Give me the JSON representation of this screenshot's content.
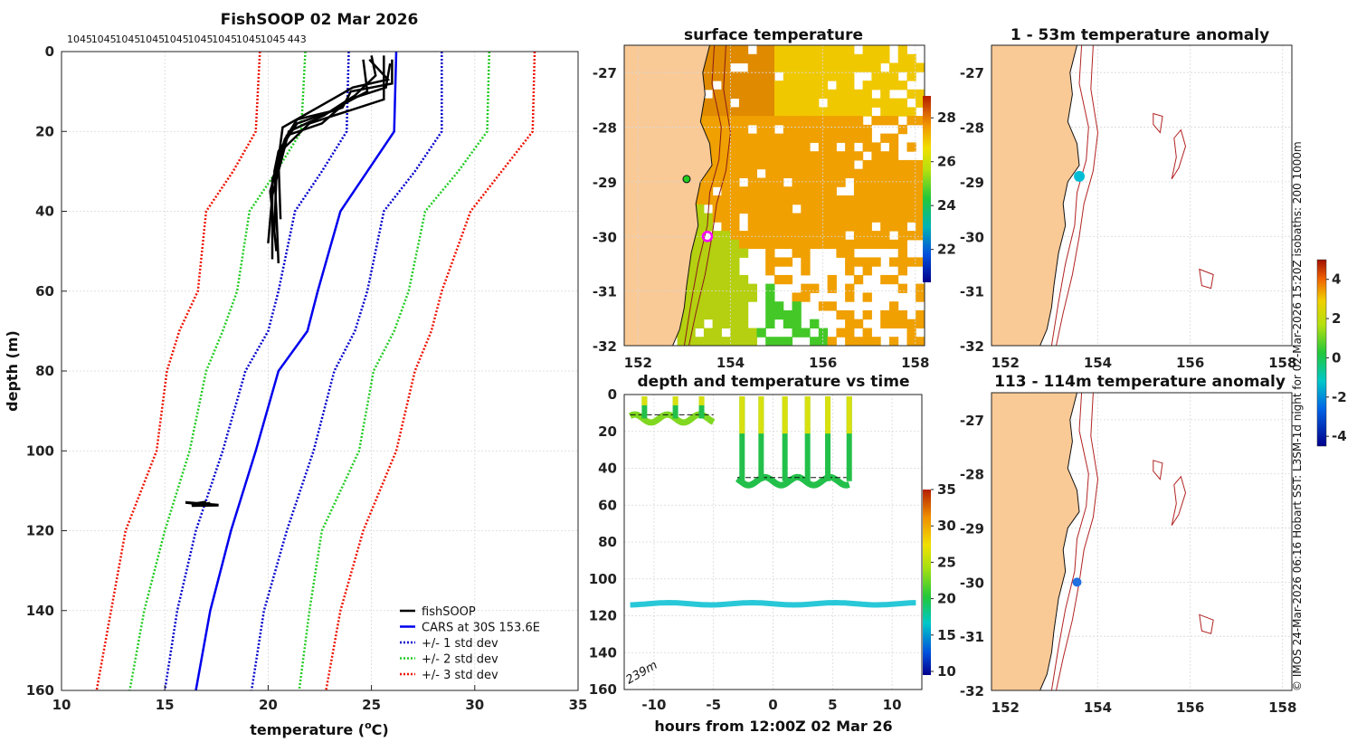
{
  "title": "FishSOOP 02 Mar 2026",
  "profile_counts": [
    "1045",
    "1045",
    "1045",
    "1045",
    "1045",
    "1045",
    "1045",
    "1045",
    "1045",
    "443"
  ],
  "credit": "© IMOS 24-Mar-2026 06:16 Hobart SST: L3SM-1d night for 02-Mar-2026 15:20Z isobaths: 200  1000m",
  "colors": {
    "fishsoop": "#000000",
    "cars": "#0000ee",
    "std1": "#0000cc",
    "std2": "#22cc22",
    "std3": "#ee1100",
    "land": "#f9c996",
    "coast": "#111111",
    "isobath": "#b22222"
  },
  "chart_data": [
    {
      "type": "line",
      "name": "profile",
      "title": "FishSOOP 02 Mar 2026",
      "xlabel": "temperature (oC)",
      "xlabel_main": "temperature (",
      "xlabel_sup": "o",
      "xlabel_end": "C)",
      "ylabel": "depth (m)",
      "xlim": [
        10,
        35
      ],
      "ylim": [
        0,
        160
      ],
      "xticks": [
        "10",
        "15",
        "20",
        "25",
        "30",
        "35"
      ],
      "yticks": [
        "0",
        "20",
        "40",
        "60",
        "80",
        "100",
        "120",
        "140",
        "160"
      ],
      "legend": [
        "fishSOOP",
        "CARS at 30S 153.6E",
        "+/- 1 std dev",
        "+/- 2 std dev",
        "+/- 3 std dev"
      ],
      "legend_position": "bottom-right",
      "cars_depth": [
        0,
        20,
        30,
        40,
        60,
        70,
        80,
        100,
        120,
        140,
        160
      ],
      "cars_mean": [
        26.2,
        26.1,
        24.8,
        23.5,
        22.4,
        21.9,
        20.5,
        19.4,
        18.2,
        17.2,
        16.5
      ],
      "std1_low": [
        23.9,
        23.8,
        22.6,
        21.3,
        20.5,
        20.0,
        18.9,
        17.8,
        16.5,
        15.6,
        15.0
      ],
      "std1_high": [
        28.4,
        28.4,
        27.1,
        25.6,
        24.8,
        24.2,
        23.2,
        22.2,
        20.9,
        19.8,
        19.2
      ],
      "std2_low": [
        21.8,
        21.6,
        20.4,
        19.1,
        18.5,
        17.8,
        17.0,
        16.2,
        15.0,
        14.0,
        13.3
      ],
      "std2_high": [
        30.7,
        30.6,
        29.2,
        27.6,
        26.8,
        26.1,
        25.1,
        24.4,
        22.6,
        22.0,
        21.5
      ],
      "std3_low": [
        19.6,
        19.4,
        18.3,
        17.0,
        16.6,
        15.7,
        15.1,
        14.6,
        13.1,
        12.4,
        11.7
      ],
      "std3_high": [
        32.9,
        32.8,
        31.3,
        29.8,
        28.4,
        27.9,
        27.1,
        26.2,
        24.6,
        23.5,
        22.8
      ],
      "fishsoop_profiles": [
        [
          [
            26.0,
            2
          ],
          [
            26.0,
            8
          ],
          [
            24.0,
            10
          ],
          [
            23.6,
            14
          ],
          [
            21.4,
            18
          ],
          [
            20.5,
            25
          ],
          [
            20.3,
            30
          ],
          [
            20.4,
            40
          ],
          [
            20.5,
            53
          ]
        ],
        [
          [
            25.9,
            3
          ],
          [
            25.7,
            9
          ],
          [
            23.9,
            12
          ],
          [
            22.7,
            16
          ],
          [
            21.0,
            20
          ],
          [
            20.6,
            28
          ],
          [
            20.2,
            36
          ],
          [
            20.0,
            48
          ]
        ],
        [
          [
            25.0,
            1
          ],
          [
            25.2,
            6
          ],
          [
            24.2,
            11
          ],
          [
            23.0,
            15
          ],
          [
            21.4,
            17
          ],
          [
            20.8,
            22
          ],
          [
            20.1,
            35
          ],
          [
            20.4,
            50
          ]
        ],
        [
          [
            24.6,
            2
          ],
          [
            24.8,
            10
          ],
          [
            23.7,
            13
          ],
          [
            22.6,
            18
          ],
          [
            20.9,
            21
          ],
          [
            20.4,
            31
          ],
          [
            20.3,
            45
          ]
        ],
        [
          [
            25.6,
            1
          ],
          [
            25.6,
            12
          ],
          [
            23.2,
            16
          ],
          [
            22.0,
            18
          ],
          [
            20.8,
            24
          ],
          [
            20.2,
            32
          ],
          [
            20.2,
            52
          ]
        ],
        [
          [
            24.9,
            2
          ],
          [
            25.8,
            7
          ],
          [
            24.1,
            9
          ],
          [
            22.4,
            14
          ],
          [
            20.7,
            19
          ],
          [
            20.5,
            27
          ],
          [
            20.6,
            42
          ]
        ]
      ],
      "deep_segment": [
        [
          17.0,
          112.8
        ],
        [
          16.5,
          113.2
        ],
        [
          16.0,
          112.9
        ],
        [
          17.6,
          113.6
        ],
        [
          16.3,
          113.7
        ],
        [
          17.2,
          113.1
        ]
      ]
    },
    {
      "type": "heatmap",
      "name": "surface-temperature-map",
      "title": "surface temperature",
      "xticks": [
        "152",
        "154",
        "156",
        "158"
      ],
      "yticks": [
        "-27",
        "-28",
        "-29",
        "-30",
        "-31",
        "-32"
      ],
      "xlim": [
        151.7,
        158.2
      ],
      "ylim": [
        -32,
        -26.5
      ],
      "colorbar_ticks": [
        "22",
        "24",
        "26",
        "28"
      ],
      "colorbar_range": [
        20.5,
        29
      ],
      "markers": [
        {
          "lon": 153.05,
          "lat": -28.95,
          "kind": "green-dot"
        },
        {
          "lon": 153.5,
          "lat": -30.0,
          "kind": "magenta-ring"
        }
      ]
    },
    {
      "type": "scatter",
      "name": "depth-temperature-time",
      "title": "depth and temperature vs time",
      "xlabel": "hours from 12:00Z 02 Mar 26",
      "xlim": [
        -12.5,
        12.5
      ],
      "ylim": [
        0,
        160
      ],
      "xticks": [
        "-10",
        "-5",
        "0",
        "5",
        "10"
      ],
      "yticks": [
        "0",
        "20",
        "40",
        "60",
        "80",
        "100",
        "120",
        "140",
        "160"
      ],
      "colorbar_ticks": [
        "10",
        "15",
        "20",
        "25",
        "30",
        "35"
      ],
      "colorbar_range": [
        9.5,
        35
      ],
      "annotation": "239m",
      "bottom_depth_series": {
        "hours_start": -12,
        "hours_end": 12,
        "depth": 113.5,
        "temperature": 17.5
      },
      "shallow_series": [
        {
          "hours_start": -12,
          "hours_end": -5,
          "depth": 13,
          "temperature": 22.5
        },
        {
          "hours_start": -3,
          "hours_end": 6.5,
          "depth": 47,
          "temperature": 21.5
        }
      ],
      "spike_hours": [
        -10.8,
        -8.2,
        -6.0,
        -2.6,
        -1.0,
        1.0,
        2.9,
        4.6,
        6.4
      ]
    },
    {
      "type": "scatter",
      "name": "anomaly-surface-map",
      "title": "1 - 53m temperature anomaly",
      "xticks": [
        "152",
        "154",
        "156",
        "158"
      ],
      "yticks": [
        "-27",
        "-28",
        "-29",
        "-30",
        "-31",
        "-32"
      ],
      "xlim": [
        151.7,
        158.2
      ],
      "ylim": [
        -32,
        -26.5
      ],
      "points": [
        {
          "lon": 153.6,
          "lat": -28.9,
          "anomaly": -0.8
        }
      ]
    },
    {
      "type": "scatter",
      "name": "anomaly-deep-map",
      "title": "113 - 114m temperature anomaly",
      "xticks": [
        "152",
        "154",
        "156",
        "158"
      ],
      "yticks": [
        "-27",
        "-28",
        "-29",
        "-30",
        "-31",
        "-32"
      ],
      "xlim": [
        151.7,
        158.2
      ],
      "ylim": [
        -32,
        -26.5
      ],
      "points": [
        {
          "lon": 153.55,
          "lat": -30.0,
          "anomaly": -2.7
        }
      ],
      "colorbar_ticks": [
        "4",
        "2",
        "0",
        "-2",
        "-4"
      ],
      "colorbar_range": [
        -4.5,
        5
      ]
    }
  ]
}
